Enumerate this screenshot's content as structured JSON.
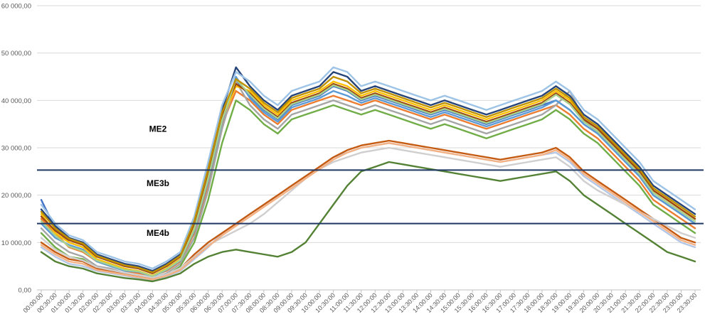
{
  "chart_data": {
    "type": "line",
    "title": "",
    "xlabel": "",
    "ylabel": "",
    "ylim": [
      0,
      60000
    ],
    "grid": true,
    "legend": "none",
    "y_ticks": [
      "0,00",
      "10 000,00",
      "20 000,00",
      "30 000,00",
      "40 000,00",
      "50 000,00",
      "60 000,00"
    ],
    "y_tick_values": [
      0,
      10000,
      20000,
      30000,
      40000,
      50000,
      60000
    ],
    "x_tick_labels": [
      "00:00:00",
      "00:30:00",
      "01:00:00",
      "01:30:00",
      "02:00:00",
      "02:30:00",
      "03:00:00",
      "03:30:00",
      "04:00:00",
      "04:30:00",
      "05:00:00",
      "05:30:00",
      "06:00:00",
      "06:30:00",
      "07:00:00",
      "07:30:00",
      "08:00:00",
      "08:30:00",
      "09:00:00",
      "09:30:00",
      "10:00:00",
      "10:30:00",
      "11:00:00",
      "11:30:00",
      "12:00:00",
      "12:30:00",
      "13:00:00",
      "13:30:00",
      "14:00:00",
      "14:30:00",
      "15:00:00",
      "15:30:00",
      "16:00:00",
      "16:30:00",
      "17:00:00",
      "17:30:00",
      "18:00:00",
      "18:30:00",
      "19:00:00",
      "19:30:00",
      "20:00:00",
      "20:30:00",
      "21:00:00",
      "21:30:00",
      "22:00:00",
      "22:30:00",
      "23:00:00",
      "23:30:00"
    ],
    "threshold_lines": [
      {
        "value": 25300,
        "color": "#1f3864"
      },
      {
        "value": 14000,
        "color": "#1f3864"
      }
    ],
    "annotations": [
      {
        "text": "ME2",
        "y": 34000
      },
      {
        "text": "ME3b",
        "y": 22500
      },
      {
        "text": "ME4b",
        "y": 12000
      }
    ],
    "series": [
      {
        "color": "#4472c4",
        "values": [
          19000,
          13000,
          10000,
          9000,
          7000,
          6000,
          5000,
          4500,
          3500,
          5000,
          7000,
          14000,
          25000,
          37000,
          44000,
          41000,
          38000,
          36000,
          39000,
          40000,
          41000,
          43000,
          42000,
          40000,
          41000,
          40000,
          39000,
          38000,
          37000,
          38000,
          37000,
          36000,
          35000,
          36000,
          37000,
          38000,
          39000,
          40000,
          38000,
          35000,
          33000,
          30000,
          27000,
          24000,
          20000,
          18000,
          16000,
          14000
        ]
      },
      {
        "color": "#ed7d31",
        "values": [
          15000,
          12000,
          9000,
          8000,
          6000,
          5000,
          4000,
          3500,
          3000,
          4000,
          6000,
          12000,
          22000,
          35000,
          42000,
          40000,
          37000,
          35000,
          38000,
          39000,
          40000,
          41000,
          40000,
          39000,
          40000,
          39000,
          38000,
          37000,
          36000,
          37000,
          36000,
          35000,
          34000,
          35000,
          36000,
          37000,
          38000,
          39000,
          37000,
          34000,
          32000,
          29000,
          26000,
          23000,
          19000,
          17000,
          15000,
          13000
        ]
      },
      {
        "color": "#a5a5a5",
        "values": [
          13000,
          10000,
          8000,
          7000,
          5000,
          4500,
          3500,
          3000,
          2500,
          3500,
          5500,
          11000,
          21000,
          34000,
          44000,
          39000,
          36000,
          34000,
          37000,
          38000,
          39000,
          40000,
          39000,
          38000,
          39000,
          38000,
          37000,
          36000,
          35000,
          36000,
          35000,
          34000,
          33000,
          34000,
          35000,
          36000,
          37000,
          39000,
          42000,
          36000,
          33000,
          30000,
          27000,
          24000,
          20000,
          18000,
          16000,
          14000
        ]
      },
      {
        "color": "#ffc000",
        "values": [
          16000,
          12000,
          10000,
          9000,
          6500,
          5500,
          4500,
          4000,
          3000,
          4500,
          6500,
          13000,
          24000,
          36000,
          43000,
          42000,
          39000,
          37000,
          40000,
          41000,
          42000,
          44000,
          43000,
          41000,
          42000,
          41000,
          40000,
          39000,
          38000,
          39000,
          38000,
          37000,
          36000,
          37000,
          38000,
          39000,
          40000,
          42000,
          40000,
          36000,
          34000,
          31000,
          28000,
          25000,
          21000,
          19000,
          17000,
          15000
        ]
      },
      {
        "color": "#5b9bd5",
        "values": [
          14000,
          11000,
          9500,
          8500,
          6000,
          5000,
          4000,
          3800,
          2800,
          4200,
          6200,
          12500,
          23000,
          35500,
          45000,
          40500,
          37500,
          35500,
          38500,
          39500,
          40500,
          42000,
          41000,
          39500,
          40500,
          39500,
          38500,
          37500,
          36500,
          37500,
          36500,
          35500,
          34500,
          35500,
          36500,
          37500,
          38500,
          40000,
          38000,
          35000,
          33000,
          30000,
          27000,
          24000,
          20000,
          18000,
          16000,
          14000
        ]
      },
      {
        "color": "#70ad47",
        "values": [
          12000,
          9000,
          7000,
          6500,
          4500,
          4000,
          3000,
          2800,
          2000,
          3000,
          5000,
          10000,
          19000,
          31000,
          40000,
          38000,
          35000,
          33000,
          36000,
          37000,
          38000,
          39000,
          38000,
          37000,
          38000,
          37000,
          36000,
          35000,
          34000,
          35000,
          34000,
          33000,
          32000,
          33000,
          34000,
          35000,
          36000,
          38000,
          36000,
          33000,
          31000,
          28000,
          25000,
          22000,
          18000,
          16000,
          14000,
          12000
        ]
      },
      {
        "color": "#264478",
        "values": [
          17000,
          13500,
          11000,
          10000,
          7500,
          6500,
          5500,
          5000,
          4000,
          5500,
          7500,
          15000,
          26000,
          38000,
          47000,
          43000,
          40000,
          38000,
          41000,
          42000,
          43000,
          46000,
          45000,
          42000,
          43000,
          42000,
          41000,
          40000,
          39000,
          40000,
          39000,
          38000,
          37000,
          38000,
          39000,
          40000,
          41000,
          43000,
          41000,
          37000,
          35000,
          32000,
          29000,
          26000,
          22000,
          20000,
          18000,
          16000
        ]
      },
      {
        "color": "#9e480e",
        "values": [
          15500,
          12500,
          10500,
          9500,
          7000,
          6000,
          5000,
          4500,
          3500,
          5000,
          7000,
          14000,
          25000,
          37000,
          43500,
          41500,
          38500,
          36500,
          39500,
          40500,
          41500,
          43500,
          42500,
          40500,
          41500,
          40500,
          39500,
          38500,
          37500,
          38500,
          37500,
          36500,
          35500,
          36500,
          37500,
          38500,
          39500,
          41500,
          39500,
          36000,
          34000,
          31000,
          28000,
          25000,
          21000,
          19000,
          17000,
          15000
        ]
      },
      {
        "color": "#b4c7e7",
        "values": [
          9000,
          7000,
          5500,
          5000,
          4000,
          3500,
          3000,
          2500,
          2000,
          2800,
          4000,
          6500,
          9000,
          12000,
          14000,
          16000,
          18000,
          20000,
          22000,
          24000,
          26000,
          28000,
          29000,
          30000,
          30500,
          31000,
          30500,
          30000,
          29500,
          29000,
          28500,
          28000,
          27500,
          27000,
          27500,
          28000,
          28500,
          29000,
          27000,
          24000,
          22000,
          20000,
          18000,
          16000,
          14000,
          12000,
          10000,
          9000
        ]
      },
      {
        "color": "#548235",
        "values": [
          8000,
          6000,
          5000,
          4500,
          3500,
          3000,
          2500,
          2200,
          1800,
          2500,
          3500,
          5500,
          7000,
          8000,
          8500,
          8000,
          7500,
          7000,
          8000,
          10000,
          14000,
          18000,
          22000,
          25000,
          26000,
          27000,
          26500,
          26000,
          25500,
          25000,
          24500,
          24000,
          23500,
          23000,
          23500,
          24000,
          24500,
          25000,
          23000,
          20000,
          18000,
          16000,
          14000,
          12000,
          10000,
          8000,
          7000,
          6000
        ]
      },
      {
        "color": "#c55a11",
        "values": [
          10000,
          8000,
          6500,
          6000,
          4500,
          4000,
          3500,
          3000,
          2500,
          3200,
          4500,
          7500,
          10000,
          12000,
          14000,
          16000,
          18000,
          20000,
          22000,
          24000,
          26000,
          28000,
          29500,
          30500,
          31000,
          31500,
          31000,
          30500,
          30000,
          29500,
          29000,
          28500,
          28000,
          27500,
          28000,
          28500,
          29000,
          30000,
          28000,
          25000,
          23000,
          21000,
          19000,
          17000,
          15000,
          13000,
          11000,
          10000
        ]
      },
      {
        "color": "#d0cece",
        "values": [
          11000,
          8500,
          7000,
          6200,
          4800,
          4200,
          3600,
          3100,
          2600,
          3300,
          4600,
          7000,
          9500,
          11000,
          12500,
          14000,
          16000,
          18500,
          21000,
          23500,
          25500,
          27000,
          28000,
          29000,
          29500,
          30000,
          29500,
          29000,
          28500,
          28000,
          27500,
          27000,
          26500,
          26000,
          26500,
          27000,
          27500,
          28000,
          26000,
          23000,
          21000,
          19500,
          18000,
          16500,
          15000,
          13500,
          12000,
          11000
        ]
      },
      {
        "color": "#f4b183",
        "values": [
          9500,
          7500,
          6000,
          5500,
          4200,
          3700,
          3200,
          2700,
          2200,
          3000,
          4200,
          6800,
          9200,
          11500,
          13500,
          15500,
          17500,
          19500,
          21500,
          23500,
          25500,
          27500,
          29000,
          30000,
          30500,
          31000,
          30500,
          30000,
          29500,
          29000,
          28500,
          28000,
          27500,
          27000,
          27500,
          28000,
          28500,
          29500,
          27500,
          24500,
          22500,
          20500,
          18500,
          16500,
          14500,
          12500,
          10500,
          9500
        ]
      },
      {
        "color": "#9dc3e6",
        "values": [
          18000,
          14000,
          11500,
          10500,
          8000,
          7000,
          6000,
          5500,
          4500,
          6000,
          8000,
          15500,
          27000,
          39000,
          46000,
          44000,
          41000,
          39000,
          42000,
          43000,
          44000,
          47000,
          46000,
          43000,
          44000,
          43000,
          42000,
          41000,
          40000,
          41000,
          40000,
          39000,
          38000,
          39000,
          40000,
          41000,
          42000,
          44000,
          42000,
          38000,
          36000,
          33000,
          30000,
          27000,
          23000,
          21000,
          19000,
          17000
        ]
      },
      {
        "color": "#a9d18e",
        "values": [
          14500,
          11500,
          9200,
          8200,
          6200,
          5200,
          4200,
          3900,
          2900,
          4300,
          6300,
          12800,
          23500,
          35800,
          44500,
          41200,
          38200,
          36200,
          39200,
          40200,
          41200,
          43200,
          42200,
          40200,
          41200,
          40200,
          39200,
          38200,
          37200,
          38200,
          37200,
          36200,
          35200,
          36200,
          37200,
          38200,
          39200,
          41200,
          39200,
          35500,
          33500,
          30500,
          27500,
          24500,
          20500,
          18500,
          16500,
          14500
        ]
      },
      {
        "color": "#bf9000",
        "values": [
          16500,
          13000,
          10800,
          9800,
          7200,
          6200,
          5200,
          4700,
          3700,
          5200,
          7200,
          14500,
          25500,
          37500,
          44500,
          42500,
          39500,
          37500,
          40500,
          41500,
          42500,
          45000,
          44000,
          41500,
          42500,
          41500,
          40500,
          39500,
          38500,
          39500,
          38500,
          37500,
          36500,
          37500,
          38500,
          39500,
          40500,
          42500,
          40500,
          36500,
          34500,
          31500,
          28500,
          25500,
          21500,
          19500,
          17500,
          15500
        ]
      }
    ]
  }
}
